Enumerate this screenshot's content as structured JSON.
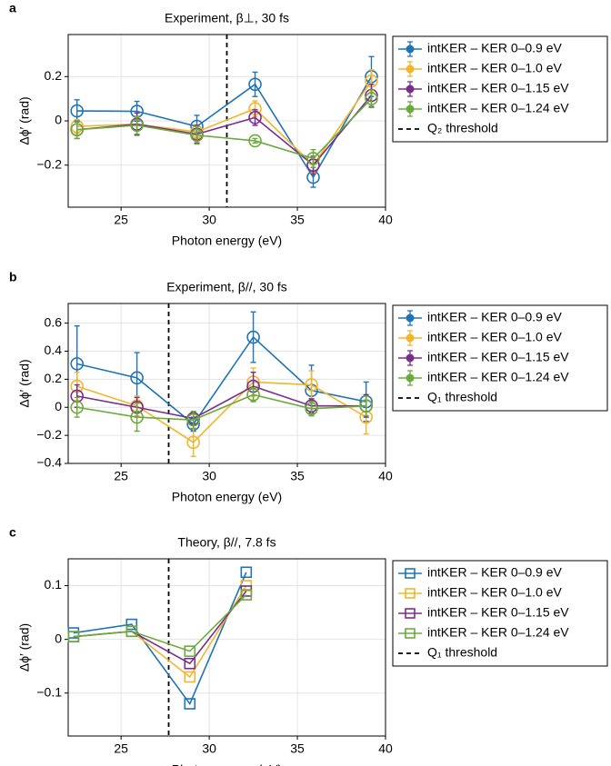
{
  "chart_data": [
    {
      "type": "line",
      "panel_label": "a",
      "title": "Experiment, β⊥, 30 fs",
      "xlabel": "Photon energy (eV)",
      "ylabel": "Δϕ′ (rad)",
      "marker": "circle",
      "grid": true,
      "xlim": [
        22,
        40
      ],
      "xticks": [
        25,
        30,
        35,
        40
      ],
      "ylim": [
        -0.39,
        0.39
      ],
      "yticks": [
        {
          "value": -0.2,
          "label": "−0.2"
        },
        0,
        0.2
      ],
      "x": [
        22.5,
        25.9,
        29.3,
        32.6,
        35.9,
        39.2
      ],
      "series": [
        {
          "name": "intKER – KER 0–0.9 eV",
          "color": "#1f74b6",
          "values": [
            0.045,
            0.043,
            -0.025,
            0.165,
            -0.255,
            0.2
          ],
          "errors": [
            0.05,
            0.045,
            0.05,
            0.055,
            0.045,
            0.09
          ]
        },
        {
          "name": "intKER – KER 0–1.0 eV",
          "color": "#f2b52b",
          "values": [
            -0.025,
            -0.015,
            -0.05,
            0.055,
            -0.2,
            0.18
          ],
          "errors": [
            0.03,
            0.03,
            0.03,
            0.035,
            0.035,
            0.05
          ]
        },
        {
          "name": "intKER – KER 0–1.15 eV",
          "color": "#7b2d8e",
          "values": [
            -0.04,
            -0.015,
            -0.06,
            0.015,
            -0.2,
            0.115
          ],
          "errors": [
            0.04,
            0.05,
            0.04,
            0.035,
            0.04,
            0.05
          ]
        },
        {
          "name": "intKER – KER 0–1.24 eV",
          "color": "#6aab3a",
          "values": [
            -0.04,
            -0.02,
            -0.065,
            -0.09,
            -0.17,
            0.1
          ],
          "errors": [
            0.04,
            0.04,
            0.04,
            0.01,
            0.04,
            0.04
          ]
        }
      ],
      "threshold": {
        "x": 31.0,
        "label": "Q₂ threshold"
      }
    },
    {
      "type": "line",
      "panel_label": "b",
      "title": "Experiment, β//, 30 fs",
      "xlabel": "Photon energy (eV)",
      "ylabel": "Δϕ′ (rad)",
      "marker": "circle",
      "grid": true,
      "xlim": [
        22,
        40
      ],
      "xticks": [
        25,
        30,
        35,
        40
      ],
      "ylim": [
        -0.4,
        0.74
      ],
      "yticks": [
        {
          "value": -0.4,
          "label": "−0.4"
        },
        {
          "value": -0.2,
          "label": "−0.2"
        },
        0,
        0.2,
        0.4,
        0.6
      ],
      "x": [
        22.5,
        25.9,
        29.1,
        32.5,
        35.8,
        38.9
      ],
      "series": [
        {
          "name": "intKER – KER 0–0.9 eV",
          "color": "#1f74b6",
          "values": [
            0.31,
            0.21,
            -0.12,
            0.5,
            0.12,
            0.04
          ],
          "errors": [
            0.27,
            0.18,
            0.05,
            0.18,
            0.18,
            0.14
          ]
        },
        {
          "name": "intKER – KER 0–1.0 eV",
          "color": "#f2b52b",
          "values": [
            0.15,
            0.01,
            -0.25,
            0.18,
            0.16,
            -0.07
          ],
          "errors": [
            0.1,
            0.07,
            0.1,
            0.1,
            0.1,
            0.12
          ]
        },
        {
          "name": "intKER – KER 0–1.15 eV",
          "color": "#7b2d8e",
          "values": [
            0.08,
            0.0,
            -0.08,
            0.15,
            0.01,
            0.01
          ],
          "errors": [
            0.08,
            0.07,
            0.05,
            0.1,
            0.05,
            0.08
          ]
        },
        {
          "name": "intKER – KER 0–1.24 eV",
          "color": "#6aab3a",
          "values": [
            0.0,
            -0.07,
            -0.09,
            0.09,
            -0.01,
            0.01
          ],
          "errors": [
            0.07,
            0.1,
            0.06,
            0.05,
            0.05,
            0.07
          ]
        }
      ],
      "threshold": {
        "x": 27.7,
        "label": "Q₁ threshold"
      }
    },
    {
      "type": "line",
      "panel_label": "c",
      "title": "Theory, β//, 7.8 fs",
      "xlabel": "Photon energy (eV)",
      "ylabel": "Δϕ′ (rad)",
      "marker": "square",
      "grid": true,
      "xlim": [
        22,
        40
      ],
      "xticks": [
        25,
        30,
        35,
        40
      ],
      "ylim": [
        -0.18,
        0.15
      ],
      "yticks": [
        {
          "value": -0.1,
          "label": "−0.1"
        },
        0,
        0.1
      ],
      "x": [
        22.3,
        25.6,
        28.9,
        32.1
      ],
      "series": [
        {
          "name": "intKER – KER 0–0.9 eV",
          "color": "#1f74b6",
          "values": [
            0.012,
            0.028,
            -0.12,
            0.125
          ]
        },
        {
          "name": "intKER – KER 0–1.0 eV",
          "color": "#f2b52b",
          "values": [
            0.005,
            0.015,
            -0.07,
            0.1
          ]
        },
        {
          "name": "intKER – KER 0–1.15 eV",
          "color": "#7b2d8e",
          "values": [
            0.005,
            0.015,
            -0.045,
            0.09
          ]
        },
        {
          "name": "intKER – KER 0–1.24 eV",
          "color": "#6aab3a",
          "values": [
            0.005,
            0.015,
            -0.022,
            0.083
          ]
        }
      ],
      "threshold": {
        "x": 27.7,
        "label": "Q₁ threshold"
      }
    }
  ]
}
